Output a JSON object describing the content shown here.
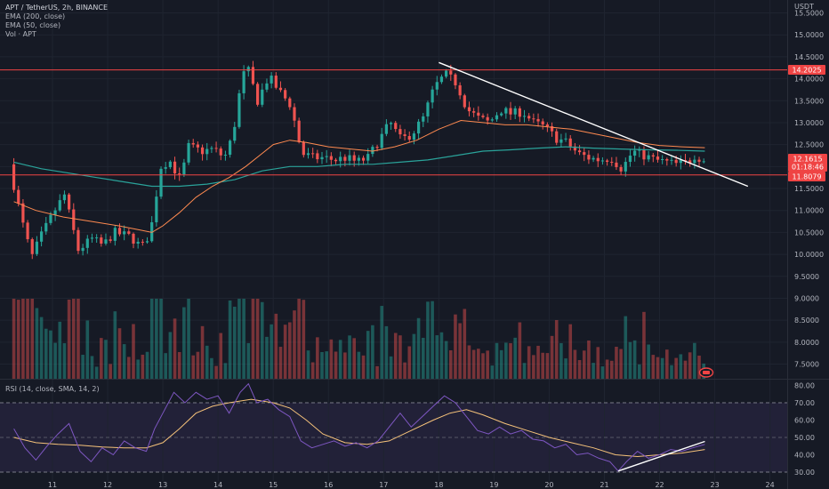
{
  "legend": {
    "title": "APT / TetherUS, 2h, BINANCE",
    "ema200": "EMA (200, close)",
    "ema50": "EMA (50, close)",
    "vol": "Vol · APT",
    "rsi": "RSI (14, close, SMA, 14, 2)"
  },
  "badges": {
    "price": "12.1615",
    "countdown": "01:18:46",
    "resistance": "14.2025",
    "support": "11.8079",
    "currency": "USDT"
  },
  "colors": {
    "up": "#26a69a",
    "down": "#ef5350",
    "ema50": "#ff8a50",
    "ema200": "#2aa39a",
    "rsi_line": "#7e57c2",
    "rsi_ma": "#f5c27a",
    "hline": "#ef4444",
    "trendline": "#ffffff"
  },
  "chart_data": {
    "type": "candlestick",
    "x_ticks": [
      {
        "day": 11,
        "label": "11"
      },
      {
        "day": 12,
        "label": "12"
      },
      {
        "day": 13,
        "label": "13"
      },
      {
        "day": 14,
        "label": "14"
      },
      {
        "day": 15,
        "label": "15"
      },
      {
        "day": 16,
        "label": "16"
      },
      {
        "day": 17,
        "label": "17"
      },
      {
        "day": 18,
        "label": "18"
      },
      {
        "day": 19,
        "label": "19"
      },
      {
        "day": 20,
        "label": "20"
      },
      {
        "day": 21,
        "label": "21"
      },
      {
        "day": 22,
        "label": "22"
      },
      {
        "day": 23,
        "label": "23"
      },
      {
        "day": 24,
        "label": "24"
      }
    ],
    "price_axis": {
      "ylim": [
        7.25,
        15.75
      ],
      "ticks": [
        "15.5000",
        "15.0000",
        "14.5000",
        "14.0000",
        "13.5000",
        "13.0000",
        "12.5000",
        "12.0000",
        "11.5000",
        "11.0000",
        "10.5000",
        "10.0000",
        "9.5000",
        "9.0000",
        "8.5000",
        "8.0000",
        "7.5000"
      ]
    },
    "rsi_axis": {
      "ylim": [
        26,
        82
      ],
      "ticks": [
        "80.00",
        "70.00",
        "60.00",
        "50.00",
        "40.00",
        "30.00"
      ],
      "band": [
        30,
        70
      ],
      "mid": 50
    },
    "horizontal_lines": [
      14.2025,
      11.8079
    ],
    "trendline": {
      "from": [
        18.0,
        14.37
      ],
      "to": [
        23.6,
        11.55
      ]
    },
    "rsi_trendline": {
      "from": [
        21.25,
        30.6
      ],
      "to": [
        22.82,
        47.7
      ]
    },
    "price_path": [
      [
        10.3,
        12.05
      ],
      [
        10.45,
        11.2
      ],
      [
        10.6,
        10.4
      ],
      [
        10.72,
        9.95
      ],
      [
        10.85,
        10.35
      ],
      [
        11.0,
        10.7
      ],
      [
        11.1,
        10.95
      ],
      [
        11.3,
        11.35
      ],
      [
        11.45,
        10.6
      ],
      [
        11.55,
        10.1
      ],
      [
        11.8,
        10.35
      ],
      [
        12.0,
        10.2
      ],
      [
        12.2,
        10.5
      ],
      [
        12.5,
        10.4
      ],
      [
        12.7,
        10.15
      ],
      [
        12.85,
        10.5
      ],
      [
        12.95,
        11.1
      ],
      [
        13.0,
        11.95
      ],
      [
        13.2,
        12.15
      ],
      [
        13.4,
        11.7
      ],
      [
        13.55,
        12.45
      ],
      [
        13.8,
        12.35
      ],
      [
        14.0,
        12.4
      ],
      [
        14.2,
        12.2
      ],
      [
        14.35,
        12.7
      ],
      [
        14.5,
        13.9
      ],
      [
        14.6,
        14.3
      ],
      [
        14.8,
        13.5
      ],
      [
        15.0,
        14.05
      ],
      [
        15.2,
        13.7
      ],
      [
        15.4,
        13.4
      ],
      [
        15.5,
        12.85
      ],
      [
        15.6,
        12.3
      ],
      [
        15.8,
        12.2
      ],
      [
        16.0,
        12.2
      ],
      [
        16.2,
        12.15
      ],
      [
        16.4,
        12.2
      ],
      [
        16.6,
        12.1
      ],
      [
        16.8,
        12.2
      ],
      [
        17.0,
        12.6
      ],
      [
        17.2,
        13.0
      ],
      [
        17.4,
        12.6
      ],
      [
        17.6,
        12.75
      ],
      [
        17.8,
        13.1
      ],
      [
        18.0,
        13.8
      ],
      [
        18.2,
        14.1
      ],
      [
        18.4,
        13.9
      ],
      [
        18.6,
        13.3
      ],
      [
        18.8,
        13.1
      ],
      [
        19.0,
        13.0
      ],
      [
        19.2,
        13.3
      ],
      [
        19.4,
        13.2
      ],
      [
        19.6,
        13.25
      ],
      [
        19.8,
        13.0
      ],
      [
        20.0,
        12.9
      ],
      [
        20.2,
        12.65
      ],
      [
        20.4,
        12.55
      ],
      [
        20.6,
        12.3
      ],
      [
        20.8,
        12.2
      ],
      [
        21.0,
        12.15
      ],
      [
        21.2,
        12.2
      ],
      [
        21.4,
        11.95
      ],
      [
        21.6,
        12.35
      ],
      [
        21.8,
        12.25
      ],
      [
        22.0,
        12.15
      ],
      [
        22.2,
        12.1
      ],
      [
        22.4,
        12.05
      ],
      [
        22.6,
        12.1
      ],
      [
        22.75,
        12.3
      ],
      [
        22.82,
        12.16
      ]
    ],
    "ema50_path": [
      [
        10.3,
        11.2
      ],
      [
        10.7,
        11.0
      ],
      [
        11.2,
        10.85
      ],
      [
        11.7,
        10.75
      ],
      [
        12.2,
        10.65
      ],
      [
        12.6,
        10.55
      ],
      [
        12.8,
        10.5
      ],
      [
        13.0,
        10.65
      ],
      [
        13.3,
        10.95
      ],
      [
        13.6,
        11.3
      ],
      [
        13.9,
        11.55
      ],
      [
        14.2,
        11.75
      ],
      [
        14.5,
        12.0
      ],
      [
        14.8,
        12.3
      ],
      [
        15.0,
        12.5
      ],
      [
        15.3,
        12.6
      ],
      [
        15.6,
        12.55
      ],
      [
        16.0,
        12.45
      ],
      [
        16.4,
        12.4
      ],
      [
        16.8,
        12.35
      ],
      [
        17.2,
        12.45
      ],
      [
        17.6,
        12.6
      ],
      [
        18.0,
        12.85
      ],
      [
        18.4,
        13.05
      ],
      [
        18.8,
        13.0
      ],
      [
        19.2,
        12.95
      ],
      [
        19.6,
        12.95
      ],
      [
        20.0,
        12.9
      ],
      [
        20.4,
        12.85
      ],
      [
        20.8,
        12.75
      ],
      [
        21.2,
        12.65
      ],
      [
        21.6,
        12.55
      ],
      [
        22.0,
        12.48
      ],
      [
        22.4,
        12.45
      ],
      [
        22.82,
        12.43
      ]
    ],
    "ema200_path": [
      [
        10.3,
        12.1
      ],
      [
        10.8,
        11.95
      ],
      [
        11.3,
        11.85
      ],
      [
        11.8,
        11.75
      ],
      [
        12.3,
        11.65
      ],
      [
        12.8,
        11.55
      ],
      [
        13.3,
        11.55
      ],
      [
        13.8,
        11.6
      ],
      [
        14.3,
        11.7
      ],
      [
        14.8,
        11.9
      ],
      [
        15.3,
        12.0
      ],
      [
        15.8,
        12.0
      ],
      [
        16.3,
        12.05
      ],
      [
        16.8,
        12.05
      ],
      [
        17.3,
        12.1
      ],
      [
        17.8,
        12.15
      ],
      [
        18.3,
        12.25
      ],
      [
        18.8,
        12.35
      ],
      [
        19.3,
        12.38
      ],
      [
        19.8,
        12.42
      ],
      [
        20.3,
        12.45
      ],
      [
        20.8,
        12.42
      ],
      [
        21.3,
        12.4
      ],
      [
        21.8,
        12.38
      ],
      [
        22.3,
        12.37
      ],
      [
        22.82,
        12.35
      ]
    ],
    "rsi_path": [
      [
        10.3,
        55
      ],
      [
        10.5,
        44
      ],
      [
        10.7,
        37
      ],
      [
        10.9,
        45
      ],
      [
        11.1,
        52
      ],
      [
        11.3,
        58
      ],
      [
        11.5,
        42
      ],
      [
        11.7,
        36
      ],
      [
        11.9,
        44
      ],
      [
        12.1,
        40
      ],
      [
        12.3,
        48
      ],
      [
        12.5,
        44
      ],
      [
        12.7,
        42
      ],
      [
        12.85,
        55
      ],
      [
        13.0,
        64
      ],
      [
        13.2,
        76
      ],
      [
        13.4,
        70
      ],
      [
        13.6,
        76
      ],
      [
        13.8,
        72
      ],
      [
        14.0,
        74
      ],
      [
        14.2,
        64
      ],
      [
        14.4,
        76
      ],
      [
        14.55,
        81
      ],
      [
        14.7,
        70
      ],
      [
        14.9,
        72
      ],
      [
        15.1,
        66
      ],
      [
        15.3,
        62
      ],
      [
        15.5,
        48
      ],
      [
        15.7,
        44
      ],
      [
        15.9,
        46
      ],
      [
        16.1,
        48
      ],
      [
        16.3,
        45
      ],
      [
        16.5,
        47
      ],
      [
        16.7,
        44
      ],
      [
        16.9,
        48
      ],
      [
        17.1,
        56
      ],
      [
        17.3,
        64
      ],
      [
        17.5,
        56
      ],
      [
        17.7,
        62
      ],
      [
        17.9,
        68
      ],
      [
        18.1,
        74
      ],
      [
        18.3,
        70
      ],
      [
        18.5,
        62
      ],
      [
        18.7,
        54
      ],
      [
        18.9,
        52
      ],
      [
        19.1,
        56
      ],
      [
        19.3,
        52
      ],
      [
        19.5,
        54
      ],
      [
        19.7,
        49
      ],
      [
        19.9,
        48
      ],
      [
        20.1,
        44
      ],
      [
        20.3,
        46
      ],
      [
        20.5,
        40
      ],
      [
        20.7,
        41
      ],
      [
        20.9,
        38
      ],
      [
        21.1,
        36
      ],
      [
        21.25,
        30.6
      ],
      [
        21.4,
        36
      ],
      [
        21.6,
        42
      ],
      [
        21.8,
        38
      ],
      [
        22.0,
        40
      ],
      [
        22.2,
        43
      ],
      [
        22.4,
        42
      ],
      [
        22.6,
        44
      ],
      [
        22.82,
        46
      ]
    ],
    "rsi_ma_path": [
      [
        10.3,
        50
      ],
      [
        10.7,
        47
      ],
      [
        11.1,
        46
      ],
      [
        11.5,
        45.5
      ],
      [
        11.9,
        44.5
      ],
      [
        12.3,
        44
      ],
      [
        12.7,
        44
      ],
      [
        13.0,
        47
      ],
      [
        13.3,
        55
      ],
      [
        13.6,
        64
      ],
      [
        13.9,
        68
      ],
      [
        14.2,
        70
      ],
      [
        14.6,
        72
      ],
      [
        15.0,
        70
      ],
      [
        15.3,
        67
      ],
      [
        15.6,
        60
      ],
      [
        15.9,
        52
      ],
      [
        16.3,
        47
      ],
      [
        16.7,
        46
      ],
      [
        17.1,
        48
      ],
      [
        17.5,
        54
      ],
      [
        17.9,
        60
      ],
      [
        18.2,
        64
      ],
      [
        18.5,
        66
      ],
      [
        18.8,
        63
      ],
      [
        19.2,
        58
      ],
      [
        19.6,
        54
      ],
      [
        20.0,
        50
      ],
      [
        20.4,
        47
      ],
      [
        20.8,
        44
      ],
      [
        21.2,
        40
      ],
      [
        21.6,
        39
      ],
      [
        22.0,
        40
      ],
      [
        22.4,
        41
      ],
      [
        22.82,
        43
      ]
    ]
  }
}
